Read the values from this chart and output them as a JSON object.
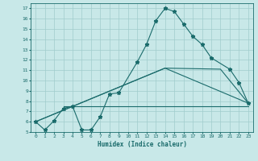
{
  "xlabel": "Humidex (Indice chaleur)",
  "xlim": [
    -0.5,
    23.5
  ],
  "ylim": [
    5,
    17.5
  ],
  "yticks": [
    5,
    6,
    7,
    8,
    9,
    10,
    11,
    12,
    13,
    14,
    15,
    16,
    17
  ],
  "xticks": [
    0,
    1,
    2,
    3,
    4,
    5,
    6,
    7,
    8,
    9,
    10,
    11,
    12,
    13,
    14,
    15,
    16,
    17,
    18,
    19,
    20,
    21,
    22,
    23
  ],
  "bg_color": "#c8e8e8",
  "grid_color": "#a0cccc",
  "line_color": "#1a6b6b",
  "main_curve": {
    "x": [
      0,
      1,
      2,
      3,
      4,
      5,
      6,
      7,
      8,
      9,
      11,
      12,
      13,
      14,
      15,
      16,
      17,
      18,
      19,
      21,
      22,
      23
    ],
    "y": [
      6.0,
      5.2,
      6.1,
      7.3,
      7.5,
      5.2,
      5.2,
      6.5,
      8.7,
      8.8,
      11.8,
      13.5,
      15.8,
      17.0,
      16.7,
      15.5,
      14.3,
      13.5,
      12.2,
      11.1,
      9.8,
      7.8
    ]
  },
  "line1": {
    "x": [
      0,
      14,
      20,
      23
    ],
    "y": [
      6.0,
      11.2,
      11.1,
      7.8
    ]
  },
  "line2": {
    "x": [
      0,
      14,
      23
    ],
    "y": [
      6.0,
      11.2,
      7.8
    ]
  },
  "line3": {
    "x": [
      3,
      23
    ],
    "y": [
      7.5,
      7.5
    ]
  }
}
